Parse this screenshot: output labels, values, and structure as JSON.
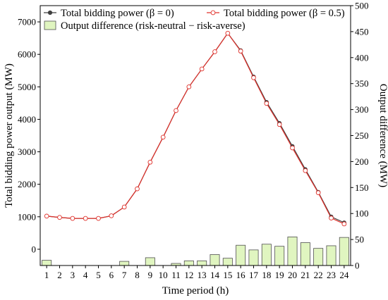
{
  "chart_data": {
    "type": "bar+line",
    "xlabel": "Time period (h)",
    "ylabel_left": "Total bidding power output (MW)",
    "ylabel_right": "Output difference (MW)",
    "categories": [
      "1",
      "2",
      "3",
      "4",
      "5",
      "6",
      "7",
      "8",
      "9",
      "10",
      "11",
      "12",
      "13",
      "14",
      "15",
      "16",
      "17",
      "18",
      "19",
      "20",
      "21",
      "22",
      "23",
      "24"
    ],
    "ylim_left": [
      -500,
      7500
    ],
    "yticks_left": [
      "0",
      "1000",
      "2000",
      "3000",
      "4000",
      "5000",
      "6000",
      "7000"
    ],
    "ylim_right": [
      0,
      500
    ],
    "yticks_right": [
      "0",
      "50",
      "100",
      "150",
      "200",
      "250",
      "300",
      "350",
      "400",
      "450",
      "500"
    ],
    "series": [
      {
        "name": "Total bidding power (β = 0)",
        "axis": "left",
        "kind": "line",
        "color": "#404040",
        "marker": "filled-circle",
        "values": [
          1020,
          980,
          950,
          950,
          950,
          1030,
          1300,
          1860,
          2680,
          3450,
          4270,
          5000,
          5550,
          6080,
          6650,
          6120,
          5310,
          4530,
          3880,
          3170,
          2460,
          1760,
          1000,
          820
        ]
      },
      {
        "name": "Total bidding power (β = 0.5)",
        "axis": "left",
        "kind": "line",
        "color": "#e0302a",
        "marker": "open-circle",
        "values": [
          1020,
          980,
          950,
          950,
          950,
          1030,
          1300,
          1860,
          2680,
          3450,
          4270,
          5000,
          5550,
          6080,
          6650,
          6100,
          5280,
          4490,
          3840,
          3120,
          2420,
          1740,
          960,
          780
        ]
      },
      {
        "name": "Output difference (risk-neutral − risk-averse)",
        "axis": "right",
        "kind": "bar",
        "color": "#e0f5c0",
        "edge": "#505050",
        "values": [
          10,
          0,
          0,
          0,
          0,
          0,
          8,
          0,
          15,
          0,
          4,
          9,
          9,
          21,
          14,
          39,
          30,
          41,
          37,
          55,
          44,
          33,
          38,
          54
        ]
      }
    ],
    "legend_position": "top-left",
    "grid": false
  }
}
